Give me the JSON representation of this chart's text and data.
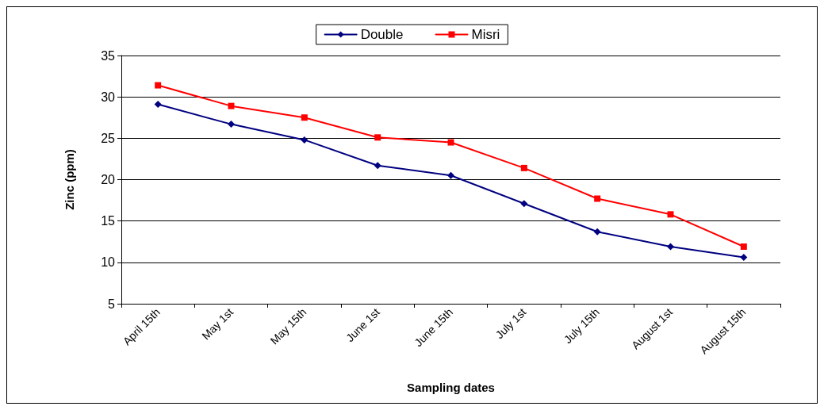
{
  "chart_data": {
    "type": "line",
    "xlabel": "Sampling dates",
    "ylabel": "Zinc (ppm)",
    "categories": [
      "April 15th",
      "May 1st",
      "May 15th",
      "June 1st",
      "June 15th",
      "July 1st",
      "July 15th",
      "August 1st",
      "August 15th"
    ],
    "series": [
      {
        "name": "Double",
        "color": "#000080",
        "marker": "diamond",
        "values": [
          29.1,
          26.7,
          24.8,
          21.7,
          20.5,
          17.1,
          13.7,
          11.9,
          10.6
        ]
      },
      {
        "name": "Misri",
        "color": "#ff0000",
        "marker": "square",
        "values": [
          31.4,
          28.9,
          27.5,
          25.1,
          24.5,
          21.4,
          17.7,
          15.8,
          11.9
        ]
      }
    ],
    "ylim": [
      5,
      35
    ],
    "yticks": [
      5,
      10,
      15,
      20,
      25,
      30,
      35
    ],
    "grid": "y",
    "legend": "top",
    "line_style": "solid"
  }
}
